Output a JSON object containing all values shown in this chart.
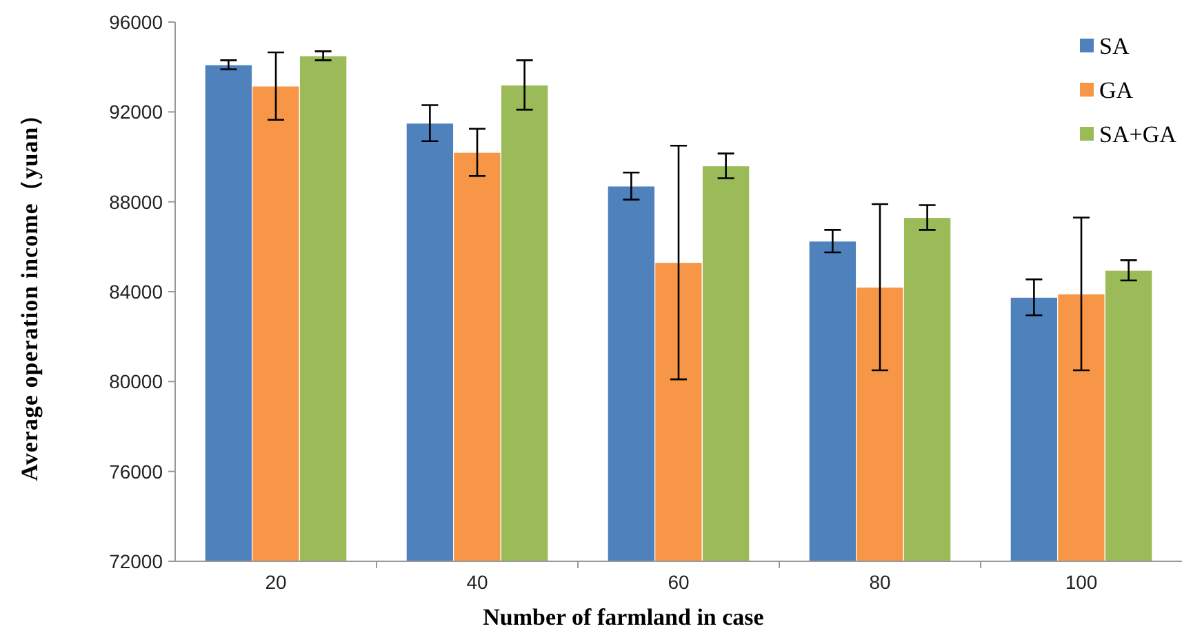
{
  "chart_data": {
    "type": "bar",
    "xlabel": "Number of farmland in case",
    "ylabel": "Average operation income（yuan）",
    "categories": [
      "20",
      "40",
      "60",
      "80",
      "100"
    ],
    "series": [
      {
        "name": "SA",
        "color": "#4f81bd",
        "values": [
          94100,
          91500,
          88700,
          86250,
          83750
        ],
        "errors": [
          200,
          800,
          600,
          500,
          800
        ]
      },
      {
        "name": "GA",
        "color": "#f79646",
        "values": [
          93150,
          90200,
          85300,
          84200,
          83900
        ],
        "errors": [
          1500,
          1050,
          5200,
          3700,
          3400
        ]
      },
      {
        "name": "SA+GA",
        "color": "#9bbb59",
        "values": [
          94500,
          93200,
          89600,
          87300,
          84950
        ],
        "errors": [
          200,
          1100,
          550,
          550,
          450
        ]
      }
    ],
    "ylim": [
      72000,
      96000
    ],
    "yticks": [
      72000,
      76000,
      80000,
      84000,
      88000,
      92000,
      96000
    ],
    "grid": false,
    "legend": "top right"
  }
}
